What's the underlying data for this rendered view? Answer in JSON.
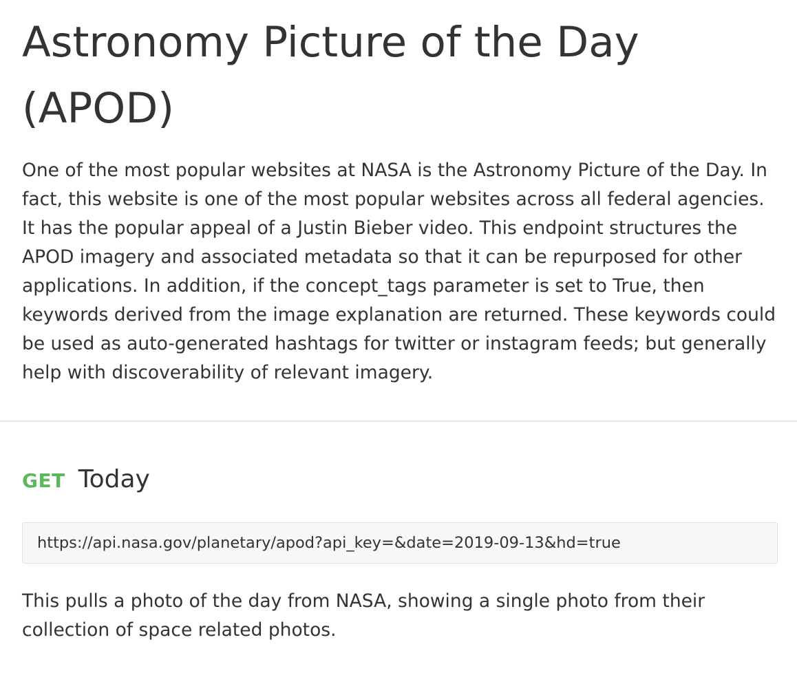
{
  "page": {
    "title": "Astronomy Picture of the Day (APOD)",
    "description": "One of the most popular websites at NASA is the Astronomy Picture of the Day. In fact, this website is one of the most popular websites across all federal agencies. It has the popular appeal of a Justin Bieber video. This endpoint structures the APOD imagery and associated metadata so that it can be repurposed for other applications. In addition, if the concept_tags parameter is set to True, then keywords derived from the image explanation are returned. These keywords could be used as auto-generated hashtags for twitter or instagram feeds; but generally help with discoverability of relevant imagery."
  },
  "endpoint": {
    "method": "GET",
    "name": "Today",
    "url": "https://api.nasa.gov/planetary/apod?api_key=&date=2019-09-13&hd=true",
    "description": "This pulls a photo of the day from NASA, showing a single photo from their collection of space related photos."
  },
  "colors": {
    "method_get": "#5cb85c",
    "text": "#333333",
    "url_box_bg": "#f7f7f7",
    "divider": "#e5e5e5"
  }
}
